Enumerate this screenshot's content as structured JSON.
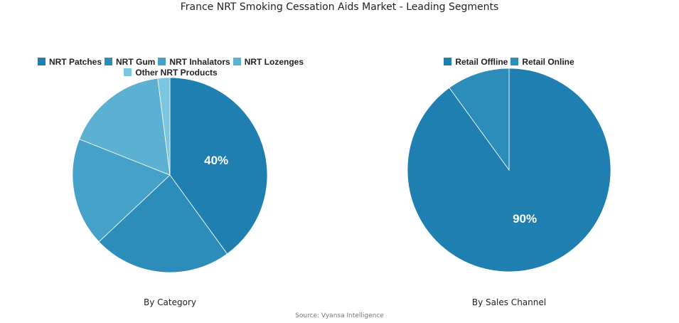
{
  "title": "France NRT Smoking Cessation Aids Market - Leading Segments",
  "source": "Source: Vyansa Intelligence",
  "chart_data": [
    {
      "type": "pie",
      "title": "By Category",
      "labels": [
        "NRT Patches",
        "NRT Gum",
        "NRT Inhalators",
        "NRT Lozenges",
        "Other NRT Products"
      ],
      "values": [
        40,
        23,
        18,
        17,
        2
      ],
      "colors": [
        "#1f7fb0",
        "#2d8dba",
        "#45a1c8",
        "#5cb0d2",
        "#7cc5df"
      ],
      "data_labels": [
        "40%",
        "",
        "",
        "",
        ""
      ],
      "legend": "top"
    },
    {
      "type": "pie",
      "title": "By Sales Channel",
      "labels": [
        "Retail Offline",
        "Retail Online"
      ],
      "values": [
        90,
        10
      ],
      "colors": [
        "#1f7fb0",
        "#2d8dba"
      ],
      "data_labels": [
        "90%",
        ""
      ],
      "legend": "top"
    }
  ]
}
